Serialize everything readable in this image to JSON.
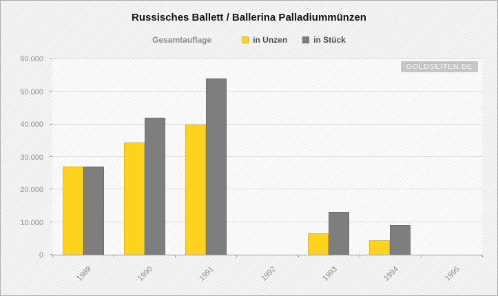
{
  "chart_data": {
    "type": "bar",
    "title": "Russisches Ballett / Ballerina Palladiummünzen",
    "legend_title": "Gesamtauflage",
    "categories": [
      "1989",
      "1990",
      "1991",
      "1992",
      "1993",
      "1994",
      "1995"
    ],
    "series": [
      {
        "name": "in Unzen",
        "color": "#FFD21E",
        "values": [
          27000,
          34500,
          40000,
          0,
          6500,
          4500,
          0
        ]
      },
      {
        "name": "in Stück",
        "color": "#7E7E7E",
        "values": [
          27000,
          42000,
          54000,
          0,
          13000,
          9000,
          0
        ]
      }
    ],
    "ylim": [
      0,
      60000
    ],
    "ytick_step": 10000,
    "ytick_labels": [
      "0",
      "10.000",
      "20.000",
      "30.000",
      "40.000",
      "50.000",
      "60.000"
    ],
    "grid": true,
    "legend_position": "top",
    "watermark": "GOLDSEITEN.DE"
  }
}
